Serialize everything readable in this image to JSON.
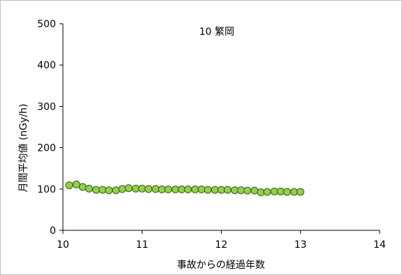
{
  "chart_data": {
    "type": "scatter",
    "title": "10 繁岡",
    "xlabel": "事故からの経過年数",
    "ylabel": "月間平均値 (nGy/h)",
    "xlim": [
      10,
      14
    ],
    "ylim": [
      0,
      500
    ],
    "xticks": [
      10,
      11,
      12,
      13,
      14
    ],
    "yticks": [
      0,
      100,
      200,
      300,
      400,
      500
    ],
    "grid": false,
    "marker_color": "#92d050",
    "marker_edge": "#3a5a14",
    "series": [
      {
        "x": [
          10.08,
          10.17,
          10.25,
          10.33,
          10.42,
          10.5,
          10.58,
          10.67,
          10.75,
          10.83,
          10.92,
          11.0,
          11.08,
          11.17,
          11.25,
          11.33,
          11.42,
          11.5,
          11.58,
          11.67,
          11.75,
          11.83,
          11.92,
          12.0,
          12.08,
          12.17,
          12.25,
          12.33,
          12.42,
          12.5,
          12.58,
          12.67,
          12.75,
          12.83,
          12.92,
          13.0
        ],
        "y": [
          109,
          111,
          105,
          101,
          98,
          98,
          97,
          97,
          100,
          102,
          101,
          101,
          100,
          100,
          99,
          99,
          99,
          99,
          99,
          99,
          99,
          98,
          98,
          98,
          98,
          97,
          97,
          96,
          96,
          92,
          93,
          94,
          94,
          93,
          93,
          93
        ]
      }
    ]
  }
}
